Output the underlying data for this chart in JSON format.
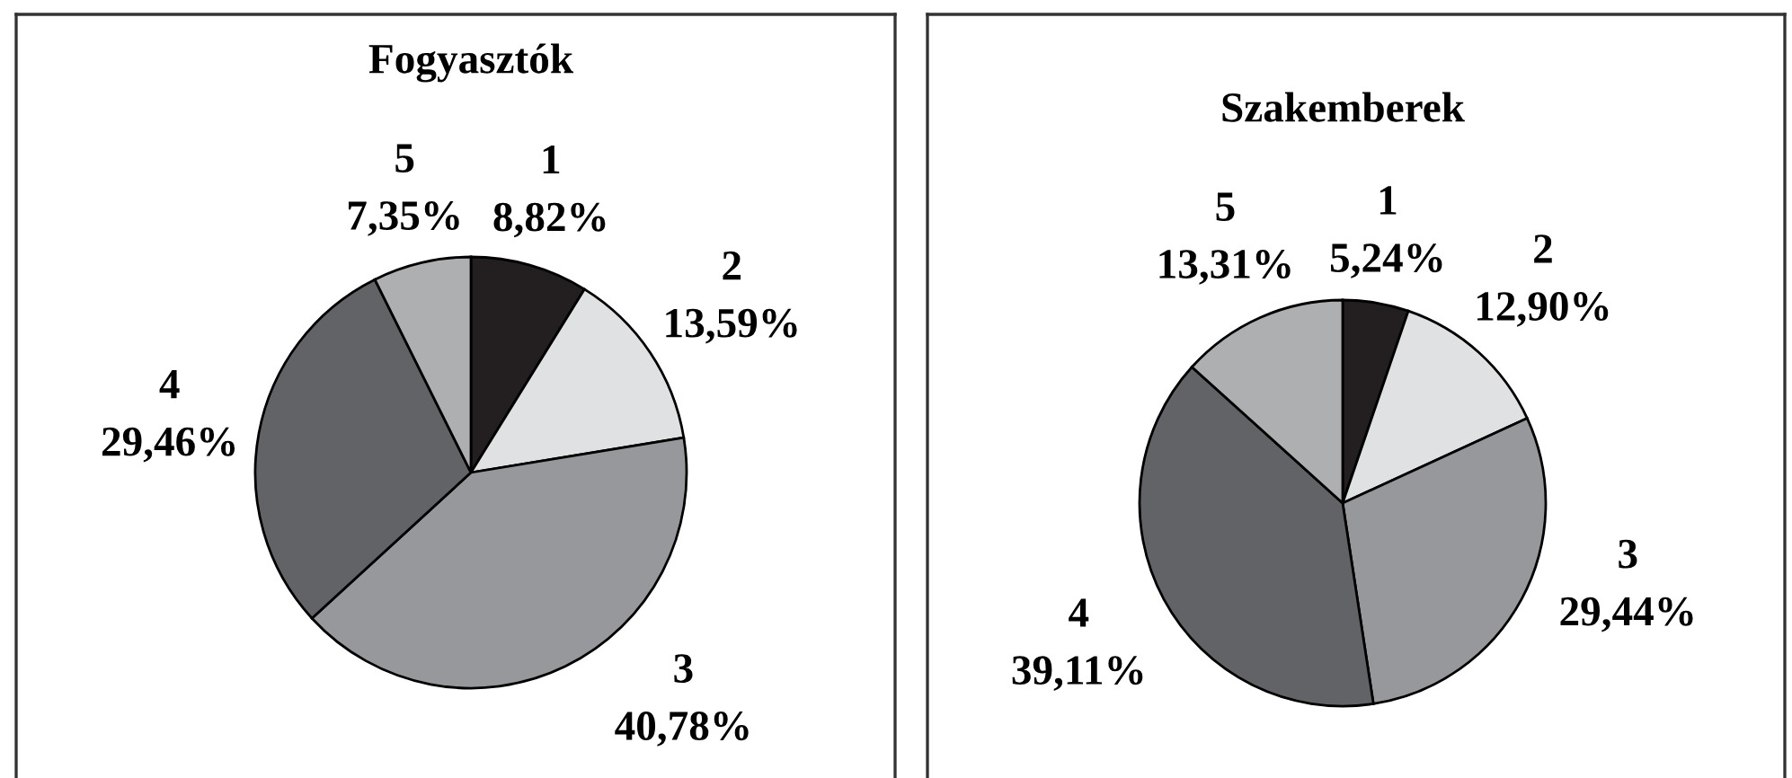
{
  "chart_data": [
    {
      "type": "pie",
      "title": "Fogyasztók",
      "categories": [
        "1",
        "2",
        "3",
        "4",
        "5"
      ],
      "values": [
        8.82,
        13.59,
        40.78,
        29.46,
        7.35
      ],
      "colors": [
        "#231f20",
        "#e0e1e3",
        "#97989c",
        "#626366",
        "#aeafb1"
      ],
      "value_labels": [
        "8,82%",
        "13,59%",
        "40,78%",
        "29,46%",
        "7,35%"
      ]
    },
    {
      "type": "pie",
      "title": "Szakemberek",
      "categories": [
        "1",
        "2",
        "3",
        "4",
        "5"
      ],
      "values": [
        5.24,
        12.9,
        29.44,
        39.11,
        13.31
      ],
      "colors": [
        "#231f20",
        "#e0e1e3",
        "#97989c",
        "#626366",
        "#aeafb1"
      ],
      "value_labels": [
        "5,24%",
        "12,90%",
        "29,44%",
        "39,11%",
        "13,31%"
      ]
    }
  ]
}
